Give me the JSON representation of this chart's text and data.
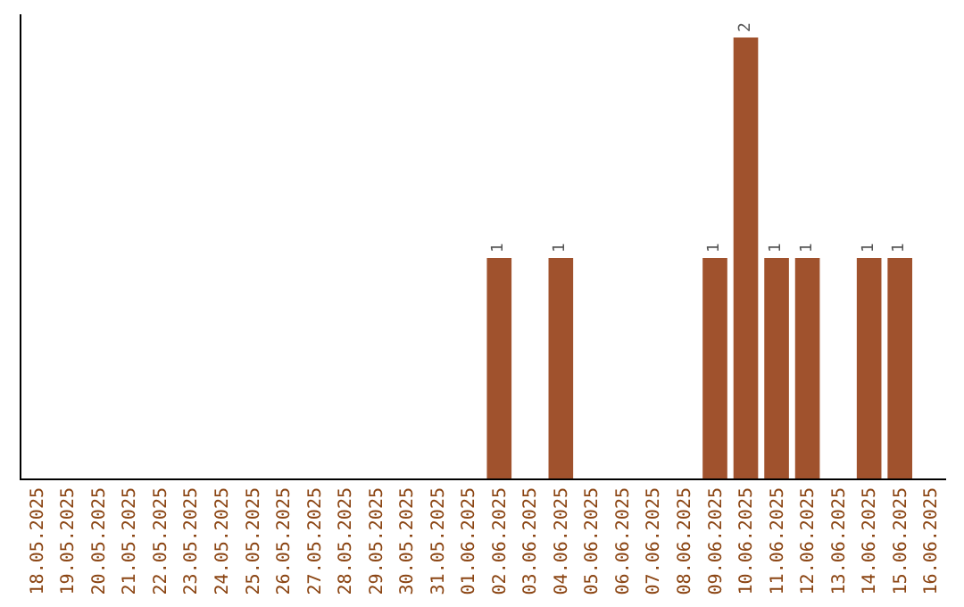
{
  "chart_data": {
    "type": "bar",
    "categories": [
      "18.05.2025",
      "19.05.2025",
      "20.05.2025",
      "21.05.2025",
      "22.05.2025",
      "23.05.2025",
      "24.05.2025",
      "25.05.2025",
      "26.05.2025",
      "27.05.2025",
      "28.05.2025",
      "29.05.2025",
      "30.05.2025",
      "31.05.2025",
      "01.06.2025",
      "02.06.2025",
      "03.06.2025",
      "04.06.2025",
      "05.06.2025",
      "06.06.2025",
      "07.06.2025",
      "08.06.2025",
      "09.06.2025",
      "10.06.2025",
      "11.06.2025",
      "12.06.2025",
      "13.06.2025",
      "14.06.2025",
      "15.06.2025",
      "16.06.2025"
    ],
    "values": [
      null,
      null,
      null,
      null,
      null,
      null,
      null,
      null,
      null,
      null,
      null,
      null,
      null,
      null,
      null,
      1,
      null,
      1,
      null,
      null,
      null,
      null,
      1,
      2,
      1,
      1,
      null,
      1,
      1,
      null
    ],
    "data_labels": true,
    "color": "#a0522d",
    "tick_labels": "x"
  }
}
